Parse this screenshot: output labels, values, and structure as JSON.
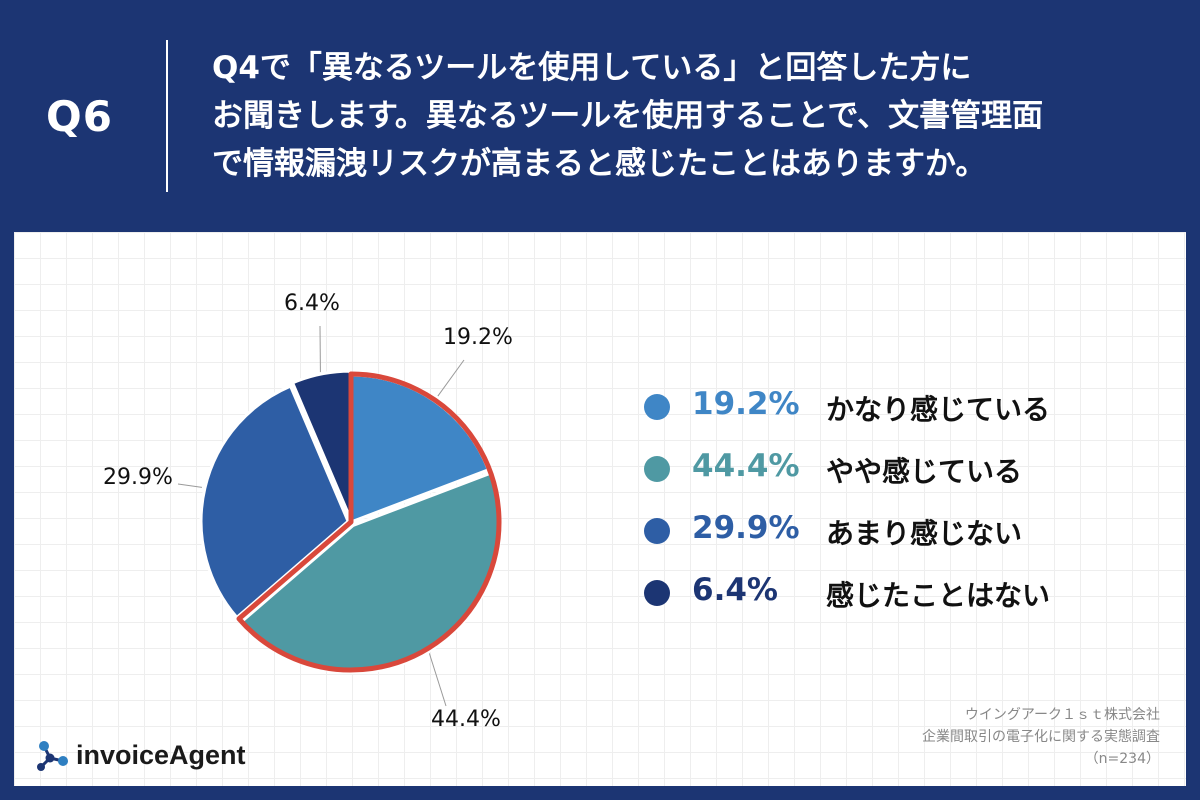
{
  "header": {
    "q_number": "Q6",
    "question_lines": [
      "Q4で「異なるツールを使用している」と回答した方に",
      "お聞きします。異なるツールを使用することで、文書管理面",
      "で情報漏洩リスクが高まると感じたことはありますか。"
    ]
  },
  "chart_data": {
    "type": "pie",
    "slices": [
      {
        "label": "かなり感じている",
        "value": 19.2,
        "display": "19.2%",
        "color": "#3f86c6"
      },
      {
        "label": "やや感じている",
        "value": 44.4,
        "display": "44.4%",
        "color": "#4f99a3"
      },
      {
        "label": "あまり感じない",
        "value": 29.9,
        "display": "29.9%",
        "color": "#2e5ea5"
      },
      {
        "label": "感じたことはない",
        "value": 6.4,
        "display": "6.4%",
        "color": "#1c3573"
      }
    ],
    "highlight_color": "#d9483b",
    "legend_position": "right"
  },
  "source": {
    "company": "ウイングアーク１ｓｔ株式会社",
    "survey": "企業間取引の電子化に関する実態調査",
    "sample": "（n=234）"
  },
  "logo": {
    "text": "invoiceAgent",
    "icon": "molecule-icon",
    "color": "#1c3573"
  }
}
